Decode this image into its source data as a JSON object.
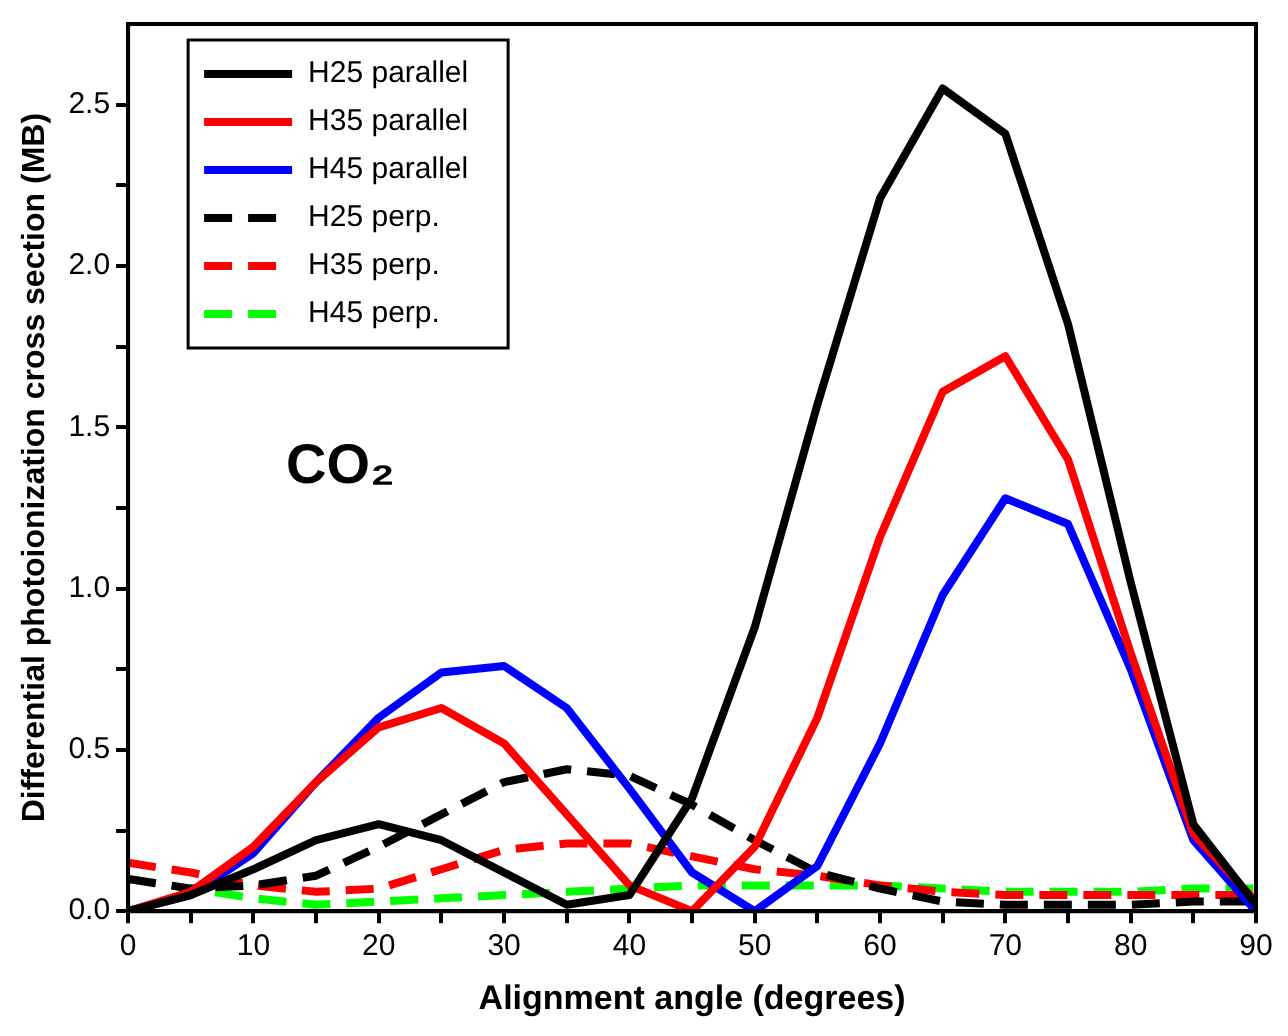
{
  "chart_data": {
    "type": "line",
    "xlabel": "Alignment angle (degrees)",
    "ylabel": "Differential photoionization cross section (MB)",
    "annotations": [
      "CO₂"
    ],
    "x": [
      0,
      5,
      10,
      15,
      20,
      25,
      30,
      35,
      40,
      45,
      50,
      55,
      60,
      65,
      70,
      75,
      80,
      85,
      90
    ],
    "xlim": [
      0,
      90
    ],
    "xticks": [
      0,
      {
        "value": 5,
        "label": null
      },
      10,
      {
        "value": 15,
        "label": null
      },
      20,
      {
        "value": 25,
        "label": null
      },
      30,
      {
        "value": 35,
        "label": null
      },
      40,
      {
        "value": 45,
        "label": null
      },
      50,
      {
        "value": 55,
        "label": null
      },
      60,
      {
        "value": 65,
        "label": null
      },
      70,
      {
        "value": 75,
        "label": null
      },
      80,
      {
        "value": 85,
        "label": null
      },
      90
    ],
    "ylim": [
      0,
      2.75
    ],
    "yticks": [
      {
        "value": 0,
        "label": "0.0"
      },
      {
        "value": 0.25,
        "label": null
      },
      {
        "value": 0.5,
        "label": "0.5"
      },
      {
        "value": 0.75,
        "label": null
      },
      {
        "value": 1,
        "label": "1.0"
      },
      {
        "value": 1.25,
        "label": null
      },
      {
        "value": 1.5,
        "label": "1.5"
      },
      {
        "value": 1.75,
        "label": null
      },
      {
        "value": 2,
        "label": "2.0"
      },
      {
        "value": 2.25,
        "label": null
      },
      {
        "value": 2.5,
        "label": "2.5"
      }
    ],
    "legend": "top left",
    "grid": false,
    "marker": "none",
    "series": [
      {
        "name": "H25 parallel",
        "color": "#000000",
        "line_style": "solid",
        "values": [
          0,
          0.05,
          0.13,
          0.22,
          0.27,
          0.22,
          0.12,
          0.02,
          0.05,
          0.35,
          0.88,
          1.57,
          2.21,
          2.55,
          2.41,
          1.82,
          1.02,
          0.27,
          0.02
        ]
      },
      {
        "name": "H35 parallel",
        "color": "#ff0000",
        "line_style": "solid",
        "values": [
          0,
          0.06,
          0.2,
          0.4,
          0.57,
          0.63,
          0.52,
          0.3,
          0.08,
          0,
          0.2,
          0.6,
          1.16,
          1.61,
          1.72,
          1.4,
          0.8,
          0.24,
          0.03
        ]
      },
      {
        "name": "H45 parallel",
        "color": "#0000ff",
        "line_style": "solid",
        "values": [
          0,
          0.05,
          0.18,
          0.4,
          0.6,
          0.74,
          0.76,
          0.63,
          0.38,
          0.12,
          0,
          0.14,
          0.52,
          0.98,
          1.28,
          1.2,
          0.75,
          0.22,
          0
        ]
      },
      {
        "name": "H25 perp.",
        "color": "#000000",
        "line_style": "dashed",
        "values": [
          0.1,
          0.07,
          0.08,
          0.11,
          0.2,
          0.3,
          0.4,
          0.44,
          0.42,
          0.33,
          0.22,
          0.12,
          0.07,
          0.03,
          0.02,
          0.02,
          0.02,
          0.03,
          0.03
        ]
      },
      {
        "name": "H35 perp.",
        "color": "#ff0000",
        "line_style": "dashed",
        "values": [
          0.15,
          0.12,
          0.08,
          0.06,
          0.07,
          0.13,
          0.19,
          0.21,
          0.21,
          0.17,
          0.13,
          0.11,
          0.08,
          0.06,
          0.05,
          0.05,
          0.05,
          0.05,
          0.05
        ]
      },
      {
        "name": "H45 perp.",
        "color": "#00ff00",
        "line_style": "dashed",
        "values": [
          0.1,
          0.07,
          0.04,
          0.02,
          0.03,
          0.04,
          0.05,
          0.06,
          0.07,
          0.08,
          0.08,
          0.08,
          0.08,
          0.07,
          0.06,
          0.06,
          0.06,
          0.07,
          0.07
        ]
      }
    ]
  }
}
